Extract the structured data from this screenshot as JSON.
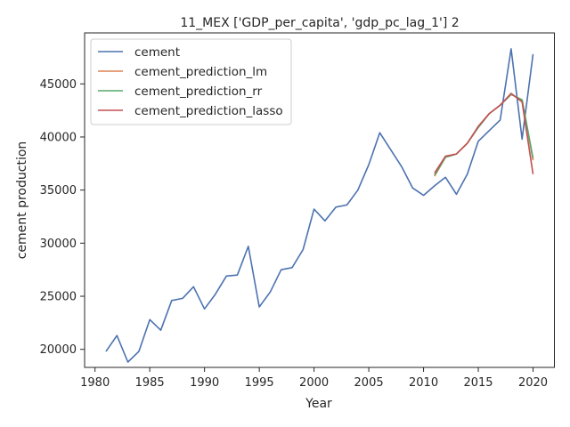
{
  "chart_data": {
    "type": "line",
    "title": "11_MEX ['GDP_per_capita', 'gdp_pc_lag_1'] 2",
    "xlabel": "Year",
    "ylabel": "cement production",
    "xlim": [
      1979.05,
      2021.95
    ],
    "ylim": [
      18300,
      49800
    ],
    "xticks": [
      1980,
      1985,
      1990,
      1995,
      2000,
      2005,
      2010,
      2015,
      2020
    ],
    "yticks": [
      20000,
      25000,
      30000,
      35000,
      40000,
      45000
    ],
    "grid": false,
    "legend_position": "top-left",
    "series": [
      {
        "name": "cement",
        "color": "#4c72b0",
        "x": [
          1981,
          1982,
          1983,
          1984,
          1985,
          1986,
          1987,
          1988,
          1989,
          1990,
          1991,
          1992,
          1993,
          1994,
          1995,
          1996,
          1997,
          1998,
          1999,
          2000,
          2001,
          2002,
          2003,
          2004,
          2005,
          2006,
          2007,
          2008,
          2009,
          2010,
          2011,
          2012,
          2013,
          2014,
          2015,
          2016,
          2017,
          2018,
          2019,
          2020
        ],
        "y": [
          19800,
          21300,
          18800,
          19800,
          22800,
          21800,
          24600,
          24800,
          25900,
          23800,
          25200,
          26900,
          27000,
          29700,
          24000,
          25400,
          27500,
          27700,
          29400,
          33200,
          32100,
          33400,
          33600,
          35000,
          37400,
          40400,
          38800,
          37200,
          35200,
          34500,
          35400,
          36200,
          34600,
          36500,
          39600,
          40600,
          41600,
          48300,
          39800,
          47800
        ]
      },
      {
        "name": "cement_prediction_lm",
        "color": "#dd8452",
        "x": [
          2011,
          2012,
          2013,
          2014,
          2015,
          2016,
          2017,
          2018,
          2019,
          2020
        ],
        "y": [
          36300,
          38100,
          38400,
          39400,
          40900,
          42200,
          43000,
          44000,
          43500,
          37800
        ]
      },
      {
        "name": "cement_prediction_rr",
        "color": "#55a868",
        "x": [
          2011,
          2012,
          2013,
          2014,
          2015,
          2016,
          2017,
          2018,
          2019,
          2020
        ],
        "y": [
          36400,
          38100,
          38400,
          39400,
          40900,
          42200,
          43000,
          44000,
          43500,
          38000
        ]
      },
      {
        "name": "cement_prediction_lasso",
        "color": "#c44e52",
        "x": [
          2011,
          2012,
          2013,
          2014,
          2015,
          2016,
          2017,
          2018,
          2019,
          2020
        ],
        "y": [
          36600,
          38200,
          38400,
          39400,
          41000,
          42200,
          43000,
          44100,
          43300,
          36500
        ]
      }
    ]
  }
}
